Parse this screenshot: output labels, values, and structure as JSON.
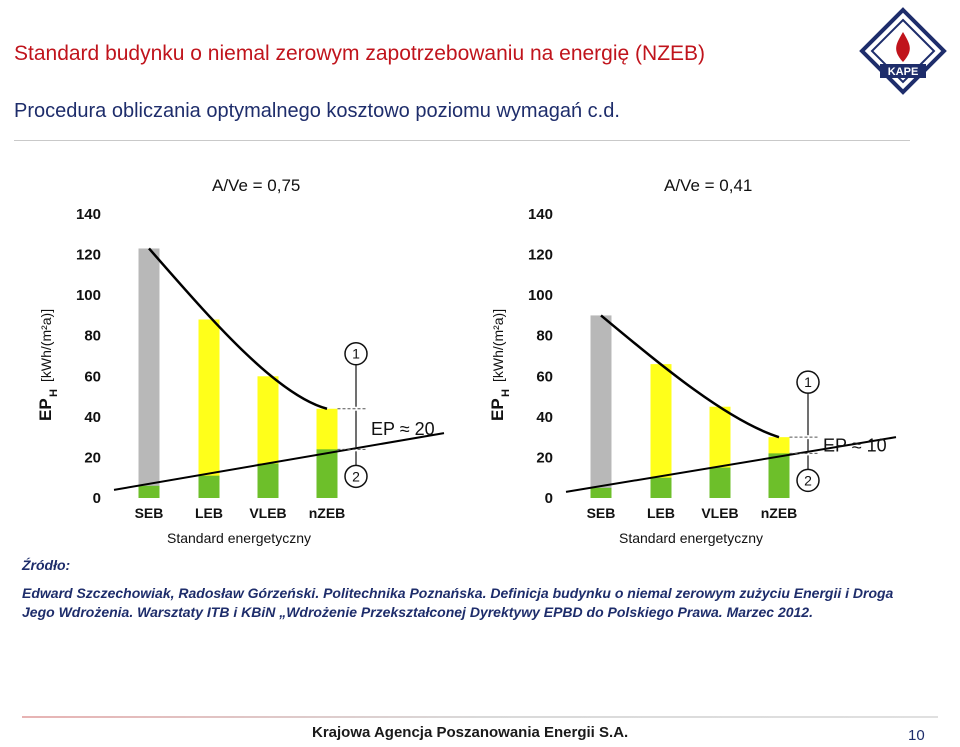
{
  "slide": {
    "title": "Standard budynku o niemal zerowym zapotrzebowaniu na energię (NZEB)",
    "subtitle": "Procedura obliczania optymalnego kosztowo poziomu wymagań c.d.",
    "logo_text": "KAPE",
    "source_label": "Źródło:",
    "source_text": "Edward Szczechowiak, Radosław Górzeński. Politechnika Poznańska. Definicja budynku o niemal zerowym zużyciu Energii i Droga Jego Wdrożenia. Warsztaty ITB i KBiN „Wdrożenie Przekształconej Dyrektywy EPBD do Polskiego Prawa. Marzec 2012.",
    "footer": "Krajowa Agencja Poszanowania Energii S.A.",
    "page_number": "10"
  },
  "colors": {
    "title": "#c0141c",
    "text": "#1e2d6b",
    "bar_seb": "#b8b8b8",
    "bar_yellow": "#ffff1a",
    "bar_green": "#6dbf2a",
    "curve": "#000000"
  },
  "chart_data": [
    {
      "type": "bar",
      "title": "A/Ve = 0,75",
      "ylabel_main": "EP",
      "ylabel_sub": "H",
      "ylabel_unit": "[kWh/(m²a)]",
      "xlabel": "Standard energetyczny",
      "categories": [
        "SEB",
        "LEB",
        "VLEB",
        "nZEB"
      ],
      "values": [
        123,
        88,
        60,
        44
      ],
      "renewable": [
        6,
        11,
        17,
        24
      ],
      "ylim": [
        0,
        140
      ],
      "yticks": [
        "0",
        "20",
        "40",
        "60",
        "80",
        "100",
        "120",
        "140"
      ],
      "annotation": "EP ≈ 20",
      "marker_1": "1",
      "marker_2": "2"
    },
    {
      "type": "bar",
      "title": "A/Ve = 0,41",
      "ylabel_main": "EP",
      "ylabel_sub": "H",
      "ylabel_unit": "[kWh/(m²a)]",
      "xlabel": "Standard energetyczny",
      "categories": [
        "SEB",
        "LEB",
        "VLEB",
        "nZEB"
      ],
      "values": [
        90,
        66,
        45,
        30
      ],
      "renewable": [
        5,
        10,
        15,
        22
      ],
      "ylim": [
        0,
        140
      ],
      "yticks": [
        "0",
        "20",
        "40",
        "60",
        "80",
        "100",
        "120",
        "140"
      ],
      "annotation": "EP ≈ 10",
      "marker_1": "1",
      "marker_2": "2"
    }
  ]
}
